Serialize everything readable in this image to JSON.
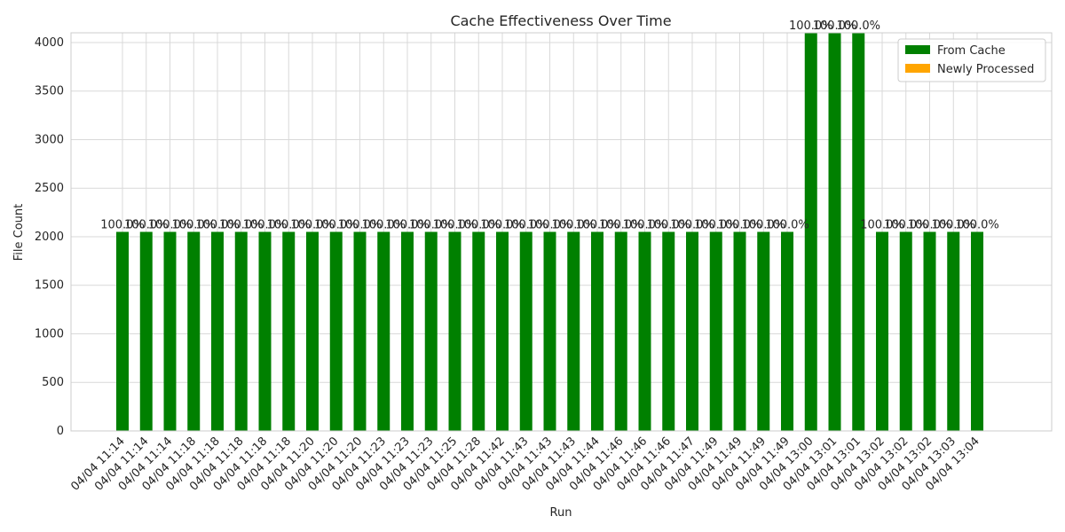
{
  "chart_data": {
    "type": "bar",
    "stacked": true,
    "title": "Cache Effectiveness Over Time",
    "xlabel": "Run",
    "ylabel": "File Count",
    "ylim": [
      0,
      4100
    ],
    "yticks": [
      0,
      500,
      1000,
      1500,
      2000,
      2500,
      3000,
      3500,
      4000
    ],
    "grid": true,
    "legend_position": "top-right",
    "categories": [
      "04/04 11:14",
      "04/04 11:14",
      "04/04 11:14",
      "04/04 11:18",
      "04/04 11:18",
      "04/04 11:18",
      "04/04 11:18",
      "04/04 11:18",
      "04/04 11:20",
      "04/04 11:20",
      "04/04 11:20",
      "04/04 11:23",
      "04/04 11:23",
      "04/04 11:23",
      "04/04 11:25",
      "04/04 11:28",
      "04/04 11:42",
      "04/04 11:43",
      "04/04 11:43",
      "04/04 11:43",
      "04/04 11:44",
      "04/04 11:46",
      "04/04 11:46",
      "04/04 11:46",
      "04/04 11:47",
      "04/04 11:49",
      "04/04 11:49",
      "04/04 11:49",
      "04/04 11:49",
      "04/04 13:00",
      "04/04 13:01",
      "04/04 13:01",
      "04/04 13:02",
      "04/04 13:02",
      "04/04 13:02",
      "04/04 13:03",
      "04/04 13:04"
    ],
    "series": [
      {
        "name": "From Cache",
        "color": "#008000",
        "values": [
          2050,
          2050,
          2050,
          2050,
          2050,
          2050,
          2050,
          2050,
          2050,
          2050,
          2050,
          2050,
          2050,
          2050,
          2050,
          2050,
          2050,
          2050,
          2050,
          2050,
          2050,
          2050,
          2050,
          2050,
          2050,
          2050,
          2050,
          2050,
          2050,
          4100,
          4100,
          4100,
          2050,
          2050,
          2050,
          2050,
          2050
        ]
      },
      {
        "name": "Newly Processed",
        "color": "#ffa500",
        "values": [
          0,
          0,
          0,
          0,
          0,
          0,
          0,
          0,
          0,
          0,
          0,
          0,
          0,
          0,
          0,
          0,
          0,
          0,
          0,
          0,
          0,
          0,
          0,
          0,
          0,
          0,
          0,
          0,
          0,
          0,
          0,
          0,
          0,
          0,
          0,
          0,
          0
        ]
      }
    ],
    "bar_labels": [
      "100.0%",
      "100.0%",
      "100.0%",
      "100.0%",
      "100.0%",
      "100.0%",
      "100.0%",
      "100.0%",
      "100.0%",
      "100.0%",
      "100.0%",
      "100.0%",
      "100.0%",
      "100.0%",
      "100.0%",
      "100.0%",
      "100.0%",
      "100.0%",
      "100.0%",
      "100.0%",
      "100.0%",
      "100.0%",
      "100.0%",
      "100.0%",
      "100.0%",
      "100.0%",
      "100.0%",
      "100.0%",
      "100.0%",
      "100.0%",
      "100.0%",
      "100.0%",
      "100.0%",
      "100.0%",
      "100.0%",
      "100.0%",
      "100.0%"
    ]
  }
}
